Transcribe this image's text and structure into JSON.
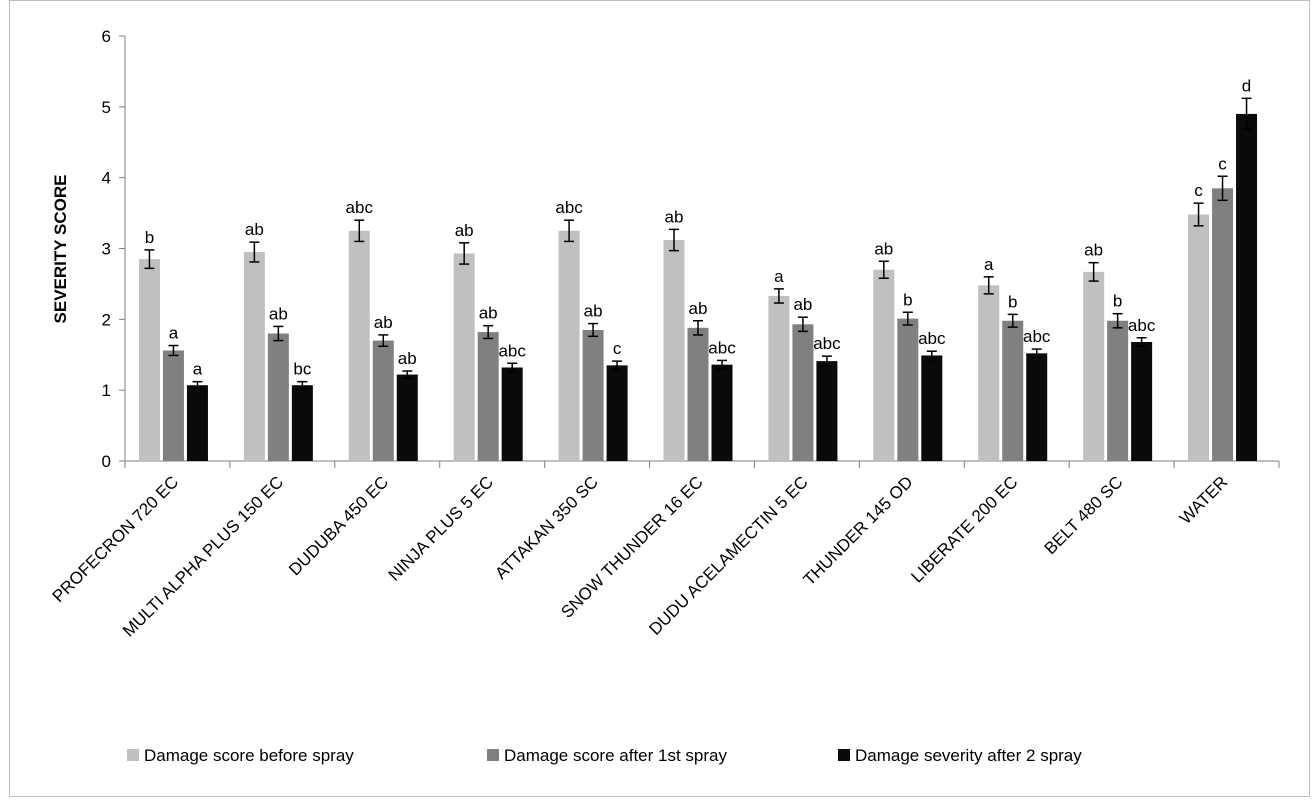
{
  "chart_data": {
    "type": "bar",
    "title": "",
    "xlabel": "",
    "ylabel": "SEVERITY SCORE",
    "ylim": [
      0,
      6
    ],
    "yticks": [
      0,
      1,
      2,
      3,
      4,
      5,
      6
    ],
    "grid": false,
    "legend_position": "bottom",
    "categories": [
      "PROFECRON 720 EC",
      "MULTI ALPHA PLUS 150 EC",
      "DUDUBA 450 EC",
      "NINJA PLUS 5 EC",
      "ATTAKAN 350 SC",
      "SNOW THUNDER  16 EC",
      "DUDU ACELAMECTIN 5 EC",
      "THUNDER 145 OD",
      "LIBERATE 200 EC",
      "BELT 480 SC",
      "WATER"
    ],
    "series": [
      {
        "name": "Damage score before spray",
        "color": "#c0c0c0",
        "values": [
          2.85,
          2.95,
          3.25,
          2.93,
          3.25,
          3.12,
          2.33,
          2.7,
          2.48,
          2.67,
          3.48
        ],
        "errors": [
          0.13,
          0.14,
          0.15,
          0.15,
          0.15,
          0.15,
          0.1,
          0.12,
          0.12,
          0.13,
          0.16
        ],
        "labels": [
          "b",
          "ab",
          "abc",
          "ab",
          "abc",
          "ab",
          "a",
          "ab",
          "a",
          "ab",
          "c"
        ]
      },
      {
        "name": "Damage score after 1st spray",
        "color": "#808080",
        "values": [
          1.56,
          1.8,
          1.7,
          1.82,
          1.85,
          1.88,
          1.93,
          2.01,
          1.98,
          1.98,
          3.85
        ],
        "errors": [
          0.07,
          0.1,
          0.08,
          0.09,
          0.09,
          0.1,
          0.1,
          0.09,
          0.09,
          0.1,
          0.17
        ],
        "labels": [
          "a",
          "ab",
          "ab",
          "ab",
          "ab",
          "ab",
          "ab",
          "b",
          "b",
          "b",
          "c"
        ]
      },
      {
        "name": "Damage severity after 2 spray",
        "color": "#0a0a0a",
        "values": [
          1.07,
          1.07,
          1.22,
          1.32,
          1.35,
          1.36,
          1.41,
          1.49,
          1.52,
          1.68,
          4.9
        ],
        "errors": [
          0.05,
          0.05,
          0.05,
          0.06,
          0.06,
          0.06,
          0.07,
          0.06,
          0.06,
          0.06,
          0.22
        ],
        "labels": [
          "a",
          "bc",
          "ab",
          "abc",
          "c",
          "abc",
          "abc",
          "abc",
          "abc",
          "abc",
          "d"
        ]
      }
    ]
  }
}
